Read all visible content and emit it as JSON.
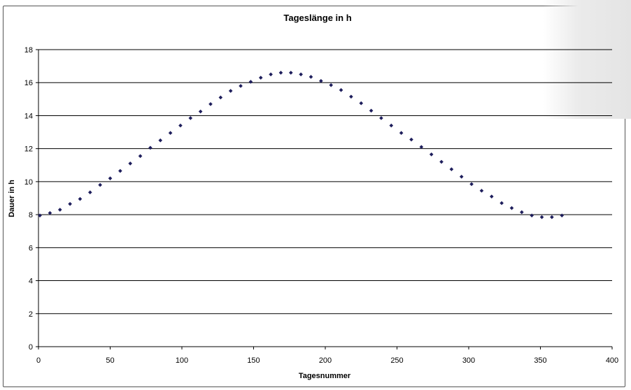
{
  "chart_data": {
    "type": "scatter",
    "title": "Tageslänge in h",
    "xlabel": "Tagesnummer",
    "ylabel": "Dauer in h",
    "xlim": [
      0,
      400
    ],
    "ylim": [
      0,
      18
    ],
    "xticks": [
      0,
      50,
      100,
      150,
      200,
      250,
      300,
      350,
      400
    ],
    "yticks": [
      0,
      2,
      4,
      6,
      8,
      10,
      12,
      14,
      16,
      18
    ],
    "grid": "horizontal",
    "legend": "none",
    "marker": "diamond",
    "series": [
      {
        "x": [
          1,
          8,
          15,
          22,
          29,
          36,
          43,
          50,
          57,
          64,
          71,
          78,
          85,
          92,
          99,
          106,
          113,
          120,
          127,
          134,
          141,
          148,
          155,
          162,
          169,
          176,
          183,
          190,
          197,
          204,
          211,
          218,
          225,
          232,
          239,
          246,
          253,
          260,
          267,
          274,
          281,
          288,
          295,
          302,
          309,
          316,
          323,
          330,
          337,
          344,
          351,
          358,
          365
        ],
        "y": [
          7.95,
          8.1,
          8.3,
          8.65,
          8.95,
          9.35,
          9.8,
          10.2,
          10.65,
          11.1,
          11.55,
          12.05,
          12.5,
          12.95,
          13.4,
          13.85,
          14.25,
          14.7,
          15.1,
          15.5,
          15.8,
          16.05,
          16.3,
          16.5,
          16.6,
          16.6,
          16.5,
          16.35,
          16.1,
          15.85,
          15.55,
          15.15,
          14.75,
          14.3,
          13.85,
          13.4,
          12.95,
          12.55,
          12.1,
          11.65,
          11.2,
          10.75,
          10.3,
          9.85,
          9.45,
          9.1,
          8.7,
          8.4,
          8.15,
          7.95,
          7.85,
          7.85,
          7.95
        ]
      }
    ]
  },
  "colors": {
    "marker": "#1e1e5c",
    "grid": "#000000",
    "axis": "#000000",
    "frame": "#555555"
  }
}
